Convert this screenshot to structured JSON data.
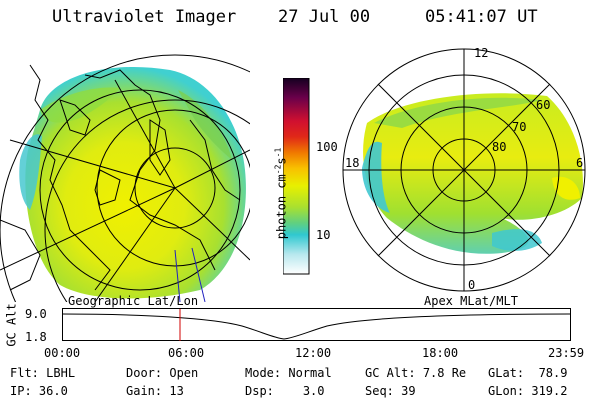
{
  "header": {
    "title": "Ultraviolet Imager",
    "date": "27 Jul 00",
    "time": "05:41:07 UT"
  },
  "colorbar": {
    "label": "photon cm",
    "label_exp1": "-2",
    "label_mid": "s",
    "label_exp2": "-1",
    "ticks": [
      "100",
      "10"
    ]
  },
  "polar_plot": {
    "mlt_labels": [
      "12",
      "18",
      "6",
      "0"
    ],
    "mlat_labels": [
      "60",
      "70",
      "80"
    ]
  },
  "altitude_panel": {
    "left_title": "Geographic Lat/Lon",
    "right_title": "Apex MLat/MLT",
    "ylabel": "GC Alt",
    "y_ticks": [
      "9.0",
      "1.8"
    ],
    "x_ticks": [
      "00:00",
      "06:00",
      "12:00",
      "18:00",
      "23:59"
    ],
    "marker_time": "05:41"
  },
  "info": {
    "flt_label": "Flt:",
    "flt_value": "LBHL",
    "ip_label": "IP:",
    "ip_value": "36.0",
    "door_label": "Door:",
    "door_value": "Open",
    "gain_label": "Gain:",
    "gain_value": "13",
    "mode_label": "Mode:",
    "mode_value": "Normal",
    "dsp_label": "Dsp:",
    "dsp_value": "3.0",
    "gcalt_label": "GC Alt:",
    "gcalt_value": "7.8 Re",
    "seq_label": "Seq:",
    "seq_value": "39",
    "glat_label": "GLat:",
    "glat_value": "78.9",
    "glon_label": "GLon:",
    "glon_value": "319.2"
  },
  "colors": {
    "background": "#ffffff",
    "marker": "#d00000",
    "aurora_yellow": "#e8e800",
    "aurora_green": "#9ce028",
    "aurora_cyan": "#40c8d8"
  }
}
